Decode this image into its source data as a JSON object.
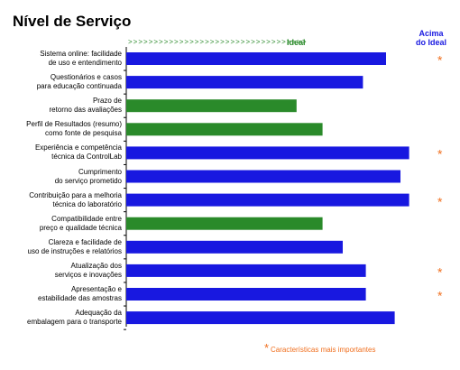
{
  "chart_data": {
    "type": "bar",
    "orientation": "horizontal",
    "title": "Nível de Serviço",
    "ideal_label": "Ideal",
    "above_label": "Acima\ndo Ideal",
    "footnote_marker": "*",
    "footnote": "Características mais importantes",
    "categories": [
      "Sistema online: facilidade\nde uso e entendimento",
      "Questionários e casos\npara educação continuada",
      "Prazo de\nretorno das avaliações",
      "Perfil de Resultados (resumo)\ncomo fonte de pesquisa",
      "Experiência e competência\ntécnica da ControlLab",
      "Cumprimento\ndo serviço prometido",
      "Contribuição para a melhoria\ntécnica do laboratório",
      "Compatibilidade entre\npreço e qualidade técnica",
      "Clareza e facilidade de\nuso de instruções e relatórios",
      "Atualização dos\nserviços e inovações",
      "Apresentação e\nestabilidade das amostras",
      "Adequação da\nembalagem para o transporte"
    ],
    "values": [
      90,
      82,
      59,
      68,
      98,
      95,
      98,
      68,
      75,
      83,
      83,
      93
    ],
    "colors": [
      "#1818e0",
      "#1818e0",
      "#2a8a2a",
      "#2a8a2a",
      "#1818e0",
      "#1818e0",
      "#1818e0",
      "#2a8a2a",
      "#1818e0",
      "#1818e0",
      "#1818e0",
      "#1818e0"
    ],
    "stars": [
      "*",
      null,
      null,
      null,
      "*",
      null,
      "*",
      null,
      null,
      "*",
      "*",
      null
    ]
  }
}
